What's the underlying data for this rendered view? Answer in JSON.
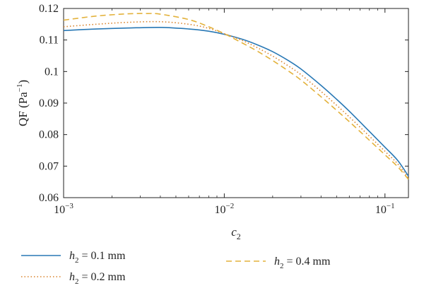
{
  "chart_data": {
    "type": "line",
    "title": "",
    "xlabel": "c",
    "xlabel_sub": "2",
    "ylabel": "QF (Pa",
    "ylabel_sup": "−1",
    "ylabel_end": ")",
    "x_scale": "log",
    "xlim": [
      0.001,
      0.14
    ],
    "ylim": [
      0.06,
      0.12
    ],
    "x_ticks": [
      {
        "value": 0.001,
        "base": "10",
        "exp": "−3"
      },
      {
        "value": 0.01,
        "base": "10",
        "exp": "−2"
      },
      {
        "value": 0.1,
        "base": "10",
        "exp": "−1"
      }
    ],
    "y_ticks": [
      {
        "value": 0.06,
        "label": "0.06"
      },
      {
        "value": 0.07,
        "label": "0.07"
      },
      {
        "value": 0.08,
        "label": "0.08"
      },
      {
        "value": 0.09,
        "label": "0.09"
      },
      {
        "value": 0.1,
        "label": "0.1"
      },
      {
        "value": 0.11,
        "label": "0.11"
      },
      {
        "value": 0.12,
        "label": "0.12"
      }
    ],
    "grid": false,
    "legend_position": "bottom",
    "series": [
      {
        "name": "h2 = 0.1 mm",
        "legend_var": "h",
        "legend_sub": "2",
        "legend_rest": " = 0.1 mm",
        "color": "#2878b5",
        "dash": "solid",
        "x": [
          0.001,
          0.0016,
          0.0025,
          0.004,
          0.006,
          0.008,
          0.01,
          0.013,
          0.016,
          0.02,
          0.025,
          0.03,
          0.04,
          0.05,
          0.06,
          0.08,
          0.1,
          0.12,
          0.14
        ],
        "y": [
          0.113,
          0.1135,
          0.1138,
          0.114,
          0.1135,
          0.1128,
          0.1118,
          0.1102,
          0.1085,
          0.1063,
          0.1035,
          0.1008,
          0.0956,
          0.0912,
          0.0874,
          0.081,
          0.076,
          0.0718,
          0.0668
        ]
      },
      {
        "name": "h2 = 0.2 mm",
        "legend_var": "h",
        "legend_sub": "2",
        "legend_rest": " = 0.2 mm",
        "color": "#d9822b",
        "dash": "dotted",
        "x": [
          0.001,
          0.0016,
          0.0025,
          0.004,
          0.006,
          0.008,
          0.01,
          0.013,
          0.016,
          0.02,
          0.025,
          0.03,
          0.04,
          0.05,
          0.06,
          0.08,
          0.1,
          0.12,
          0.14
        ],
        "y": [
          0.1142,
          0.115,
          0.1156,
          0.1158,
          0.115,
          0.1137,
          0.112,
          0.1098,
          0.1076,
          0.1049,
          0.1018,
          0.099,
          0.0937,
          0.0893,
          0.0856,
          0.0795,
          0.0747,
          0.0707,
          0.0662
        ]
      },
      {
        "name": "h2 = 0.4 mm",
        "legend_var": "h",
        "legend_sub": "2",
        "legend_rest": " = 0.4 mm",
        "color": "#e3b23c",
        "dash": "dashed",
        "x": [
          0.001,
          0.0016,
          0.0025,
          0.0033,
          0.004,
          0.006,
          0.008,
          0.01,
          0.013,
          0.016,
          0.02,
          0.025,
          0.03,
          0.04,
          0.05,
          0.06,
          0.08,
          0.1,
          0.12,
          0.14
        ],
        "y": [
          0.1163,
          0.1176,
          0.1183,
          0.1184,
          0.1182,
          0.1165,
          0.1142,
          0.112,
          0.109,
          0.1065,
          0.1035,
          0.1002,
          0.0973,
          0.092,
          0.0877,
          0.0841,
          0.0782,
          0.0736,
          0.0698,
          0.0658
        ]
      }
    ]
  }
}
